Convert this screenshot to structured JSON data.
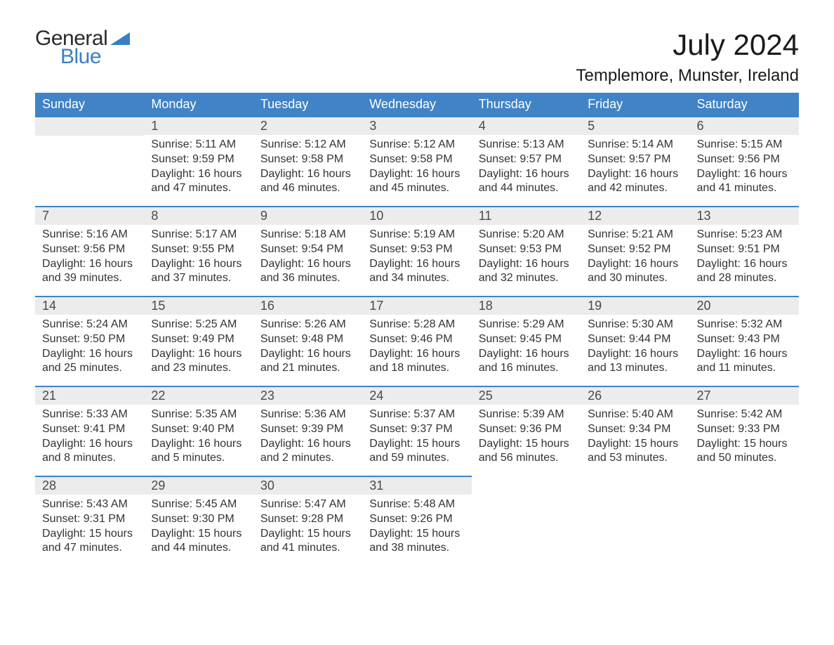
{
  "logo": {
    "text1": "General",
    "text2": "Blue",
    "tri_color": "#3a7fc4",
    "text1_color": "#2a2a2a"
  },
  "title": "July 2024",
  "location": "Templemore, Munster, Ireland",
  "day_headers": [
    "Sunday",
    "Monday",
    "Tuesday",
    "Wednesday",
    "Thursday",
    "Friday",
    "Saturday"
  ],
  "theme": {
    "header_bg": "#4083c6",
    "header_fg": "#ffffff",
    "daynum_bg": "#ececec",
    "row_border": "#4083c6",
    "text_color": "#333333",
    "bg": "#ffffff"
  },
  "weeks": [
    [
      null,
      {
        "n": "1",
        "sr": "Sunrise: 5:11 AM",
        "ss": "Sunset: 9:59 PM",
        "dl": "Daylight: 16 hours and 47 minutes."
      },
      {
        "n": "2",
        "sr": "Sunrise: 5:12 AM",
        "ss": "Sunset: 9:58 PM",
        "dl": "Daylight: 16 hours and 46 minutes."
      },
      {
        "n": "3",
        "sr": "Sunrise: 5:12 AM",
        "ss": "Sunset: 9:58 PM",
        "dl": "Daylight: 16 hours and 45 minutes."
      },
      {
        "n": "4",
        "sr": "Sunrise: 5:13 AM",
        "ss": "Sunset: 9:57 PM",
        "dl": "Daylight: 16 hours and 44 minutes."
      },
      {
        "n": "5",
        "sr": "Sunrise: 5:14 AM",
        "ss": "Sunset: 9:57 PM",
        "dl": "Daylight: 16 hours and 42 minutes."
      },
      {
        "n": "6",
        "sr": "Sunrise: 5:15 AM",
        "ss": "Sunset: 9:56 PM",
        "dl": "Daylight: 16 hours and 41 minutes."
      }
    ],
    [
      {
        "n": "7",
        "sr": "Sunrise: 5:16 AM",
        "ss": "Sunset: 9:56 PM",
        "dl": "Daylight: 16 hours and 39 minutes."
      },
      {
        "n": "8",
        "sr": "Sunrise: 5:17 AM",
        "ss": "Sunset: 9:55 PM",
        "dl": "Daylight: 16 hours and 37 minutes."
      },
      {
        "n": "9",
        "sr": "Sunrise: 5:18 AM",
        "ss": "Sunset: 9:54 PM",
        "dl": "Daylight: 16 hours and 36 minutes."
      },
      {
        "n": "10",
        "sr": "Sunrise: 5:19 AM",
        "ss": "Sunset: 9:53 PM",
        "dl": "Daylight: 16 hours and 34 minutes."
      },
      {
        "n": "11",
        "sr": "Sunrise: 5:20 AM",
        "ss": "Sunset: 9:53 PM",
        "dl": "Daylight: 16 hours and 32 minutes."
      },
      {
        "n": "12",
        "sr": "Sunrise: 5:21 AM",
        "ss": "Sunset: 9:52 PM",
        "dl": "Daylight: 16 hours and 30 minutes."
      },
      {
        "n": "13",
        "sr": "Sunrise: 5:23 AM",
        "ss": "Sunset: 9:51 PM",
        "dl": "Daylight: 16 hours and 28 minutes."
      }
    ],
    [
      {
        "n": "14",
        "sr": "Sunrise: 5:24 AM",
        "ss": "Sunset: 9:50 PM",
        "dl": "Daylight: 16 hours and 25 minutes."
      },
      {
        "n": "15",
        "sr": "Sunrise: 5:25 AM",
        "ss": "Sunset: 9:49 PM",
        "dl": "Daylight: 16 hours and 23 minutes."
      },
      {
        "n": "16",
        "sr": "Sunrise: 5:26 AM",
        "ss": "Sunset: 9:48 PM",
        "dl": "Daylight: 16 hours and 21 minutes."
      },
      {
        "n": "17",
        "sr": "Sunrise: 5:28 AM",
        "ss": "Sunset: 9:46 PM",
        "dl": "Daylight: 16 hours and 18 minutes."
      },
      {
        "n": "18",
        "sr": "Sunrise: 5:29 AM",
        "ss": "Sunset: 9:45 PM",
        "dl": "Daylight: 16 hours and 16 minutes."
      },
      {
        "n": "19",
        "sr": "Sunrise: 5:30 AM",
        "ss": "Sunset: 9:44 PM",
        "dl": "Daylight: 16 hours and 13 minutes."
      },
      {
        "n": "20",
        "sr": "Sunrise: 5:32 AM",
        "ss": "Sunset: 9:43 PM",
        "dl": "Daylight: 16 hours and 11 minutes."
      }
    ],
    [
      {
        "n": "21",
        "sr": "Sunrise: 5:33 AM",
        "ss": "Sunset: 9:41 PM",
        "dl": "Daylight: 16 hours and 8 minutes."
      },
      {
        "n": "22",
        "sr": "Sunrise: 5:35 AM",
        "ss": "Sunset: 9:40 PM",
        "dl": "Daylight: 16 hours and 5 minutes."
      },
      {
        "n": "23",
        "sr": "Sunrise: 5:36 AM",
        "ss": "Sunset: 9:39 PM",
        "dl": "Daylight: 16 hours and 2 minutes."
      },
      {
        "n": "24",
        "sr": "Sunrise: 5:37 AM",
        "ss": "Sunset: 9:37 PM",
        "dl": "Daylight: 15 hours and 59 minutes."
      },
      {
        "n": "25",
        "sr": "Sunrise: 5:39 AM",
        "ss": "Sunset: 9:36 PM",
        "dl": "Daylight: 15 hours and 56 minutes."
      },
      {
        "n": "26",
        "sr": "Sunrise: 5:40 AM",
        "ss": "Sunset: 9:34 PM",
        "dl": "Daylight: 15 hours and 53 minutes."
      },
      {
        "n": "27",
        "sr": "Sunrise: 5:42 AM",
        "ss": "Sunset: 9:33 PM",
        "dl": "Daylight: 15 hours and 50 minutes."
      }
    ],
    [
      {
        "n": "28",
        "sr": "Sunrise: 5:43 AM",
        "ss": "Sunset: 9:31 PM",
        "dl": "Daylight: 15 hours and 47 minutes."
      },
      {
        "n": "29",
        "sr": "Sunrise: 5:45 AM",
        "ss": "Sunset: 9:30 PM",
        "dl": "Daylight: 15 hours and 44 minutes."
      },
      {
        "n": "30",
        "sr": "Sunrise: 5:47 AM",
        "ss": "Sunset: 9:28 PM",
        "dl": "Daylight: 15 hours and 41 minutes."
      },
      {
        "n": "31",
        "sr": "Sunrise: 5:48 AM",
        "ss": "Sunset: 9:26 PM",
        "dl": "Daylight: 15 hours and 38 minutes."
      },
      null,
      null,
      null
    ]
  ]
}
